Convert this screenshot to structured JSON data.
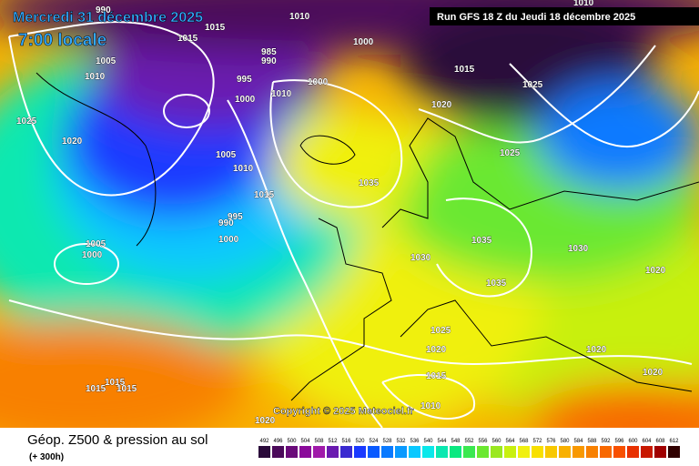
{
  "header": {
    "date": "Mercredi 31 décembre 2025",
    "time": "7:00 locale",
    "run": "Run GFS 18 Z du Jeudi 18 décembre 2025"
  },
  "footer": {
    "title": "Géop. Z500 & pression au sol",
    "lead": "(+ 300h)",
    "copyright": "Copyright © 2025 Meteociel.fr"
  },
  "isobar_labels": [
    1015,
    1015,
    990,
    1005,
    1010,
    1025,
    1020,
    985,
    990,
    995,
    1000,
    1000,
    1010,
    1000,
    1005,
    1010,
    1015,
    990,
    995,
    1000,
    1005,
    1000,
    1015,
    1020,
    1025,
    1025,
    1035,
    1035,
    1030,
    1035,
    1030,
    1020,
    1025,
    1020,
    1020,
    1020,
    1015,
    1010,
    1015,
    1015,
    1015,
    1020,
    1010,
    1010
  ],
  "scale": {
    "values": [
      492,
      496,
      500,
      504,
      508,
      512,
      516,
      520,
      524,
      528,
      532,
      536,
      540,
      544,
      548,
      552,
      556,
      560,
      564,
      568,
      572,
      576,
      580,
      584,
      588,
      592,
      596,
      600,
      604,
      608,
      612
    ],
    "colors": [
      "#2a0a3a",
      "#4b0a5a",
      "#6a0a7a",
      "#8a0a9a",
      "#a01aaa",
      "#6a1ab0",
      "#3a2ad0",
      "#1a3aff",
      "#0a5aff",
      "#0a7aff",
      "#0a9aff",
      "#0ac8ff",
      "#0ae8ea",
      "#0ae8b0",
      "#0ae880",
      "#3ae850",
      "#6ae830",
      "#9ae820",
      "#c8f010",
      "#f0f010",
      "#f8e000",
      "#f8c800",
      "#f8b000",
      "#f89800",
      "#f88000",
      "#f86800",
      "#f85000",
      "#e83000",
      "#c81800",
      "#a00000",
      "#300000"
    ]
  }
}
